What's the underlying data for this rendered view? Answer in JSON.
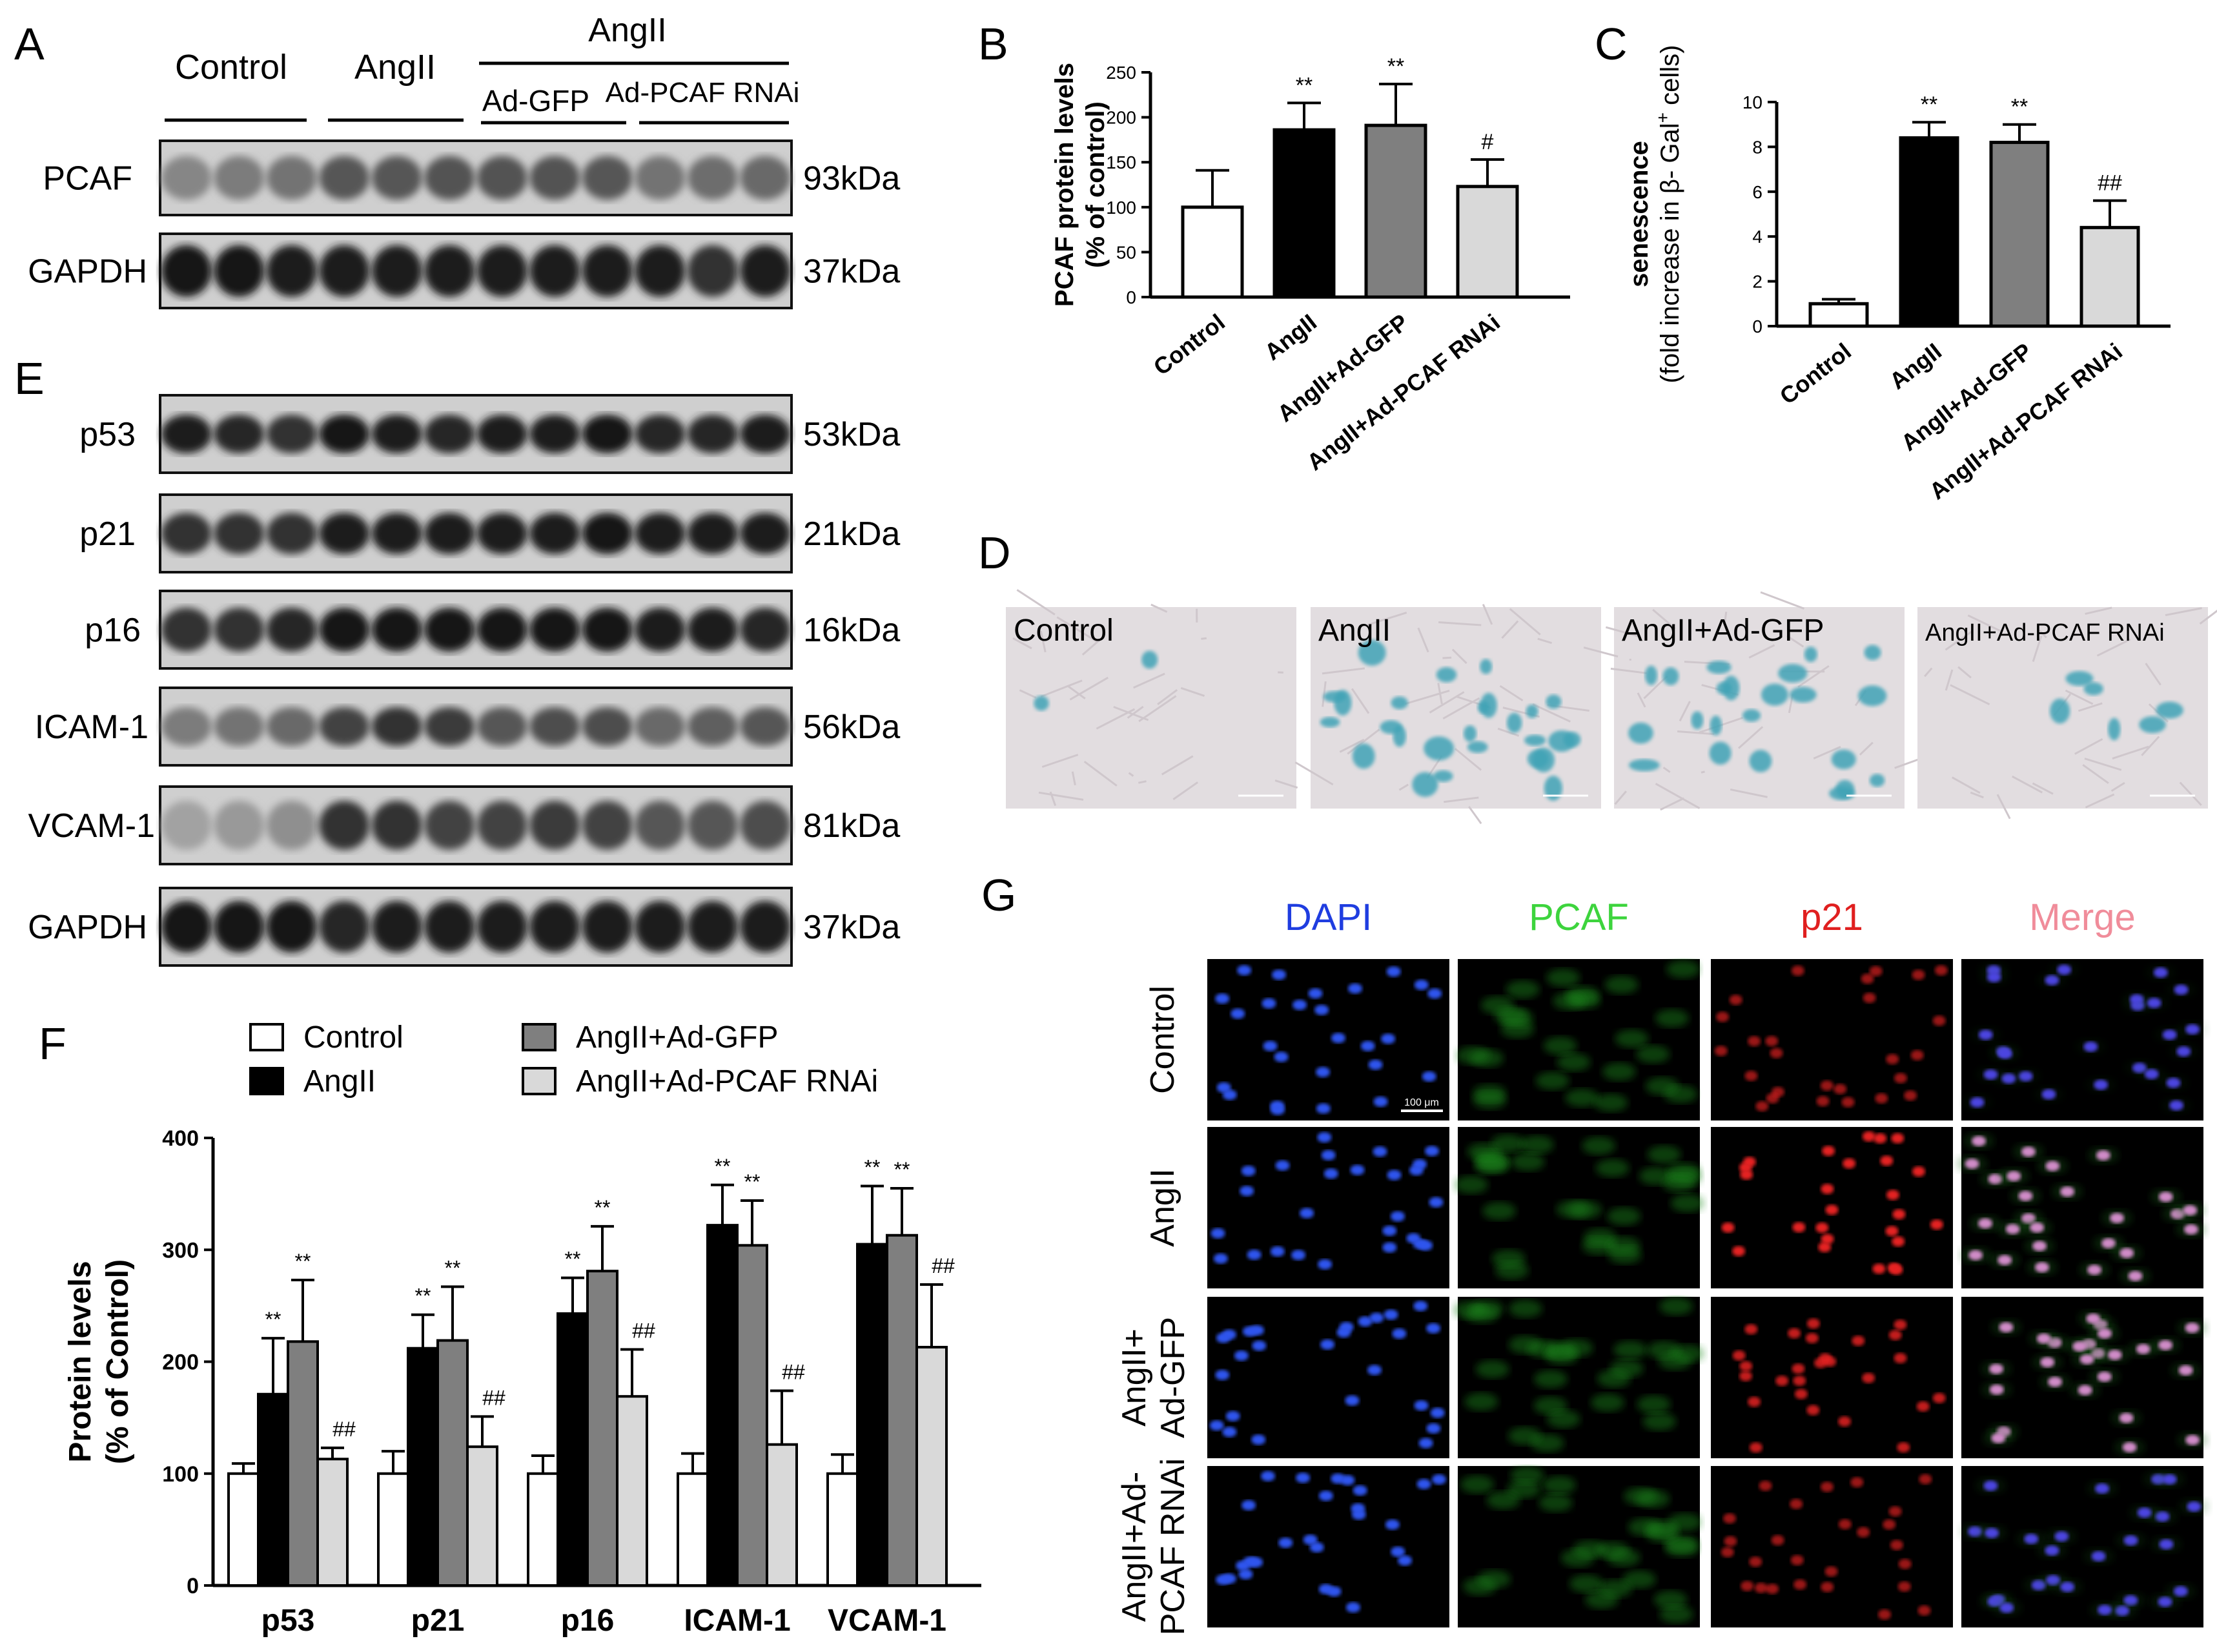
{
  "panels": {
    "A": "A",
    "B": "B",
    "C": "C",
    "D": "D",
    "E": "E",
    "F": "F",
    "G": "G"
  },
  "blotA": {
    "groups": [
      "Control",
      "AngII",
      "AngII",
      "Ad-GFP",
      "Ad-PCAF RNAi"
    ],
    "rows": [
      {
        "name": "PCAF",
        "kda": "93kDa"
      },
      {
        "name": "GAPDH",
        "kda": "37kDa"
      }
    ]
  },
  "blotE": {
    "rows": [
      {
        "name": "p53",
        "kda": "53kDa"
      },
      {
        "name": "p21",
        "kda": "21kDa"
      },
      {
        "name": "p16",
        "kda": "16kDa"
      },
      {
        "name": "ICAM-1",
        "kda": "56kDa"
      },
      {
        "name": "VCAM-1",
        "kda": "81kDa"
      },
      {
        "name": "GAPDH",
        "kda": "37kDa"
      }
    ]
  },
  "colors": {
    "control": "#ffffff",
    "angii": "#000000",
    "gfp": "#7f7f7f",
    "rnai": "#d9d9d9",
    "dapi": "#1f3de0",
    "pcaf": "#3dd43d",
    "p21": "#e01f1f",
    "merge": "#f08c9a"
  },
  "chart_data": [
    {
      "type": "bar",
      "panel": "B",
      "ylabel": "PCAF protein levels",
      "ylabel2": "(% of control)",
      "categories": [
        "Control",
        "AngII",
        "AngII+Ad-GFP",
        "AngII+Ad-PCAF RNAi"
      ],
      "values": [
        100,
        186,
        191,
        123
      ],
      "errors": [
        41,
        30,
        46,
        30
      ],
      "annotations": [
        "",
        "**",
        "**",
        "#"
      ],
      "ylim": [
        0,
        250
      ],
      "yticks": [
        0,
        50,
        100,
        150,
        200,
        250
      ]
    },
    {
      "type": "bar",
      "panel": "C",
      "ylabel": "senescence",
      "ylabel2": "(fold increase in β- Gal",
      "ylabel2_sup": "+",
      "ylabel2_end": " cells)",
      "categories": [
        "Control",
        "AngII",
        "AngII+Ad-GFP",
        "AngII+Ad-PCAF RNAi"
      ],
      "values": [
        1.0,
        8.4,
        8.2,
        4.4
      ],
      "errors": [
        0.2,
        0.7,
        0.8,
        1.2
      ],
      "annotations": [
        "",
        "**",
        "**",
        "##"
      ],
      "ylim": [
        0,
        10
      ],
      "yticks": [
        0,
        2,
        4,
        6,
        8,
        10
      ]
    },
    {
      "type": "bar",
      "panel": "F",
      "ylabel": "Protein levels",
      "ylabel2": "(% of Control)",
      "categories": [
        "p53",
        "p21",
        "p16",
        "ICAM-1",
        "VCAM-1"
      ],
      "series": [
        {
          "name": "Control",
          "values": [
            100,
            100,
            100,
            100,
            100
          ],
          "errors": [
            9,
            20,
            16,
            18,
            17
          ]
        },
        {
          "name": "AngII",
          "values": [
            171,
            212,
            243,
            322,
            305
          ],
          "errors": [
            50,
            30,
            32,
            36,
            52
          ]
        },
        {
          "name": "AngII+Ad-GFP",
          "values": [
            218,
            219,
            281,
            304,
            313
          ],
          "errors": [
            55,
            48,
            40,
            40,
            42
          ]
        },
        {
          "name": "AngII+Ad-PCAF RNAi",
          "values": [
            113,
            124,
            169,
            126,
            213
          ],
          "errors": [
            10,
            27,
            42,
            48,
            56
          ]
        }
      ],
      "annotations": [
        [
          "",
          "**",
          "**",
          "##"
        ],
        [
          "",
          "**",
          "**",
          "##"
        ],
        [
          "",
          "**",
          "**",
          "##"
        ],
        [
          "",
          "**",
          "**",
          "##"
        ],
        [
          "",
          "**",
          "**",
          "##"
        ]
      ],
      "ylim": [
        0,
        400
      ],
      "yticks": [
        0,
        100,
        200,
        300,
        400
      ],
      "legend": "top"
    }
  ],
  "panelD": {
    "labels": [
      "Control",
      "AngII",
      "AngII+Ad-GFP",
      "AngII+Ad-PCAF RNAi"
    ]
  },
  "panelG": {
    "columns": [
      "DAPI",
      "PCAF",
      "p21",
      "Merge"
    ],
    "rows": [
      [
        "Control"
      ],
      [
        "AngII"
      ],
      [
        "AngII+",
        "Ad-GFP"
      ],
      [
        "AngII+Ad-",
        "PCAF RNAi"
      ]
    ],
    "scalebar": "100 μm"
  }
}
